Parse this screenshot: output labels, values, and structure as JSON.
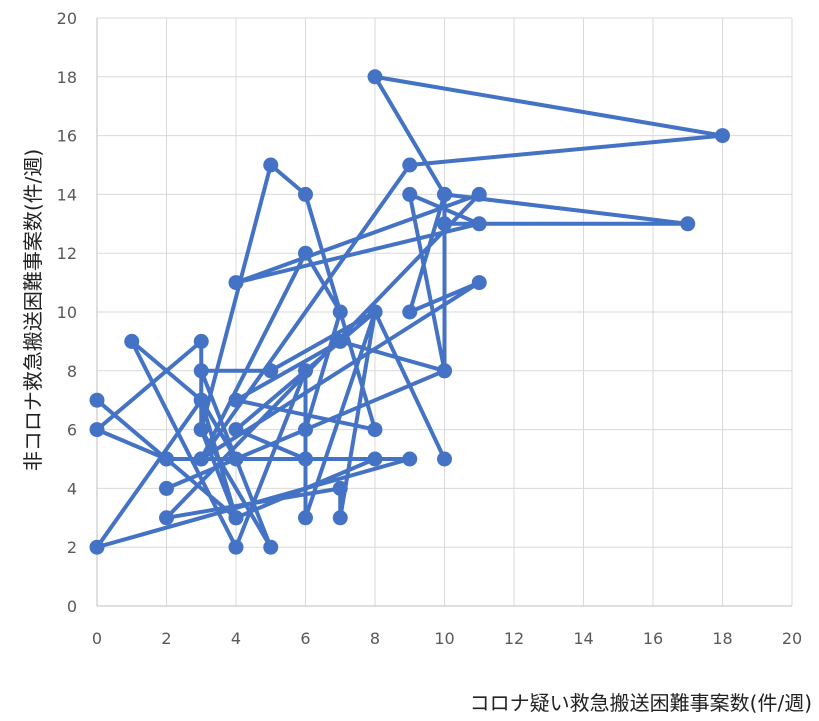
{
  "chart_data": {
    "type": "scatter",
    "mode": "lines+markers",
    "title": "",
    "xlabel": "コロナ疑い救急搬送困難事案数(件/週)",
    "ylabel": "非コロナ救急搬送困難事案数(件/週)",
    "xlim": [
      0,
      20
    ],
    "ylim": [
      0,
      20
    ],
    "xticks": [
      "0",
      "2",
      "4",
      "6",
      "8",
      "10",
      "12",
      "14",
      "16",
      "18",
      "20"
    ],
    "yticks": [
      "0",
      "2",
      "4",
      "6",
      "8",
      "10",
      "12",
      "14",
      "16",
      "18",
      "20"
    ],
    "grid": true,
    "series_color": "#4472C4",
    "points": [
      [
        0,
        7
      ],
      [
        2,
        5
      ],
      [
        4,
        5
      ],
      [
        3,
        7
      ],
      [
        4,
        3
      ],
      [
        2,
        5
      ],
      [
        0,
        6
      ],
      [
        3,
        9
      ],
      [
        3,
        6
      ],
      [
        5,
        15
      ],
      [
        6,
        14
      ],
      [
        8,
        6
      ],
      [
        4,
        7
      ],
      [
        7,
        9
      ],
      [
        10,
        8
      ],
      [
        2,
        4
      ],
      [
        6,
        6
      ],
      [
        7,
        10
      ],
      [
        6,
        12
      ],
      [
        3,
        5
      ],
      [
        9,
        5
      ],
      [
        0,
        2
      ],
      [
        3,
        7
      ],
      [
        1,
        9
      ],
      [
        4,
        2
      ],
      [
        6,
        8
      ],
      [
        6,
        3
      ],
      [
        8,
        10
      ],
      [
        4,
        6
      ],
      [
        6,
        5
      ],
      [
        8,
        5
      ],
      [
        4,
        3
      ],
      [
        3,
        6
      ],
      [
        5,
        2
      ],
      [
        3,
        8
      ],
      [
        5,
        8
      ],
      [
        8,
        10
      ],
      [
        10,
        5
      ],
      [
        8,
        10
      ],
      [
        7,
        3
      ],
      [
        7,
        4
      ],
      [
        2,
        3
      ],
      [
        11,
        14
      ],
      [
        4,
        11
      ],
      [
        11,
        13
      ],
      [
        9,
        14
      ],
      [
        10,
        8
      ],
      [
        10,
        14
      ],
      [
        9,
        10
      ],
      [
        11,
        11
      ],
      [
        3,
        5
      ],
      [
        9,
        15
      ],
      [
        18,
        16
      ],
      [
        8,
        18
      ],
      [
        10,
        14
      ],
      [
        17,
        13
      ],
      [
        10,
        13
      ]
    ]
  }
}
